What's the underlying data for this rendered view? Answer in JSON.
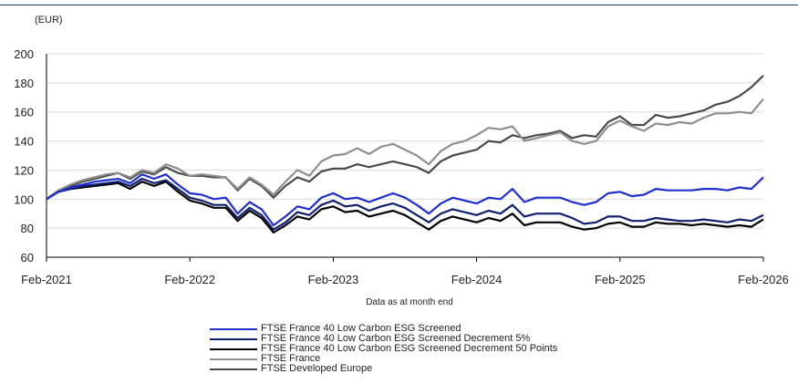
{
  "chart_data": {
    "type": "line",
    "unit_label": "(EUR)",
    "xlabel": "Data as at month end",
    "ylabel": "",
    "ylim": [
      60,
      200
    ],
    "y_ticks": [
      60,
      80,
      100,
      120,
      140,
      160,
      180,
      200
    ],
    "x_start": "Feb-2021",
    "x_end": "Feb-2026",
    "x_ticks": [
      "Feb-2021",
      "Feb-2022",
      "Feb-2023",
      "Feb-2024",
      "Feb-2025",
      "Feb-2026"
    ],
    "grid": "horizontal",
    "legend_position": "bottom",
    "series": [
      {
        "name": "FTSE France 40 Low Carbon ESG Screened",
        "color": "#1f2fd1",
        "values": [
          100,
          105,
          108,
          110,
          112,
          113,
          114,
          111,
          117,
          114,
          117,
          110,
          104,
          103,
          100,
          101,
          90,
          98,
          93,
          82,
          88,
          95,
          93,
          101,
          104,
          100,
          101,
          98,
          101,
          104,
          101,
          96,
          90,
          97,
          101,
          99,
          97,
          101,
          100,
          107,
          98,
          101,
          101,
          101,
          98,
          96,
          98,
          104,
          105,
          102,
          103,
          107,
          106,
          106,
          106,
          107,
          107,
          106,
          108,
          107,
          115
        ]
      },
      {
        "name": "FTSE France 40 Low Carbon ESG Screened Decrement 5%",
        "color": "#101f6e",
        "values": [
          100,
          105,
          107,
          109,
          110,
          111,
          112,
          109,
          114,
          111,
          113,
          107,
          101,
          99,
          96,
          96,
          87,
          94,
          89,
          79,
          84,
          91,
          89,
          96,
          99,
          95,
          96,
          92,
          95,
          97,
          94,
          89,
          84,
          90,
          93,
          91,
          89,
          92,
          90,
          96,
          88,
          90,
          90,
          90,
          87,
          83,
          84,
          88,
          88,
          85,
          85,
          87,
          86,
          85,
          85,
          86,
          85,
          84,
          86,
          85,
          89
        ]
      },
      {
        "name": "FTSE France 40 Low Carbon ESG Screened Decrement 50 Points",
        "color": "#000000",
        "values": [
          100,
          105,
          107,
          108,
          109,
          110,
          111,
          107,
          112,
          109,
          112,
          105,
          99,
          97,
          94,
          94,
          85,
          92,
          87,
          77,
          82,
          88,
          86,
          93,
          95,
          91,
          92,
          88,
          90,
          92,
          89,
          84,
          79,
          85,
          88,
          86,
          84,
          87,
          85,
          90,
          82,
          84,
          84,
          84,
          81,
          79,
          80,
          83,
          84,
          81,
          81,
          84,
          83,
          83,
          82,
          83,
          82,
          81,
          82,
          81,
          86
        ]
      },
      {
        "name": "FTSE France",
        "color": "#8e8e8e",
        "values": [
          100,
          106,
          110,
          113,
          115,
          117,
          118,
          115,
          120,
          118,
          124,
          121,
          116,
          117,
          116,
          115,
          107,
          115,
          110,
          103,
          112,
          120,
          116,
          126,
          130,
          131,
          135,
          131,
          136,
          138,
          134,
          130,
          124,
          133,
          138,
          140,
          144,
          149,
          148,
          150,
          140,
          142,
          144,
          146,
          140,
          138,
          140,
          150,
          154,
          150,
          147,
          152,
          151,
          153,
          152,
          156,
          159,
          159,
          160,
          159,
          169
        ]
      },
      {
        "name": "FTSE Developed Europe",
        "color": "#4a4a4a",
        "values": [
          100,
          106,
          109,
          112,
          114,
          116,
          118,
          114,
          119,
          117,
          122,
          118,
          116,
          116,
          115,
          115,
          106,
          114,
          109,
          101,
          109,
          115,
          112,
          119,
          121,
          121,
          124,
          122,
          124,
          126,
          124,
          122,
          118,
          126,
          130,
          132,
          134,
          140,
          139,
          144,
          142,
          144,
          145,
          147,
          142,
          144,
          143,
          153,
          157,
          151,
          151,
          158,
          156,
          157,
          159,
          161,
          165,
          167,
          171,
          177,
          185
        ]
      }
    ]
  }
}
